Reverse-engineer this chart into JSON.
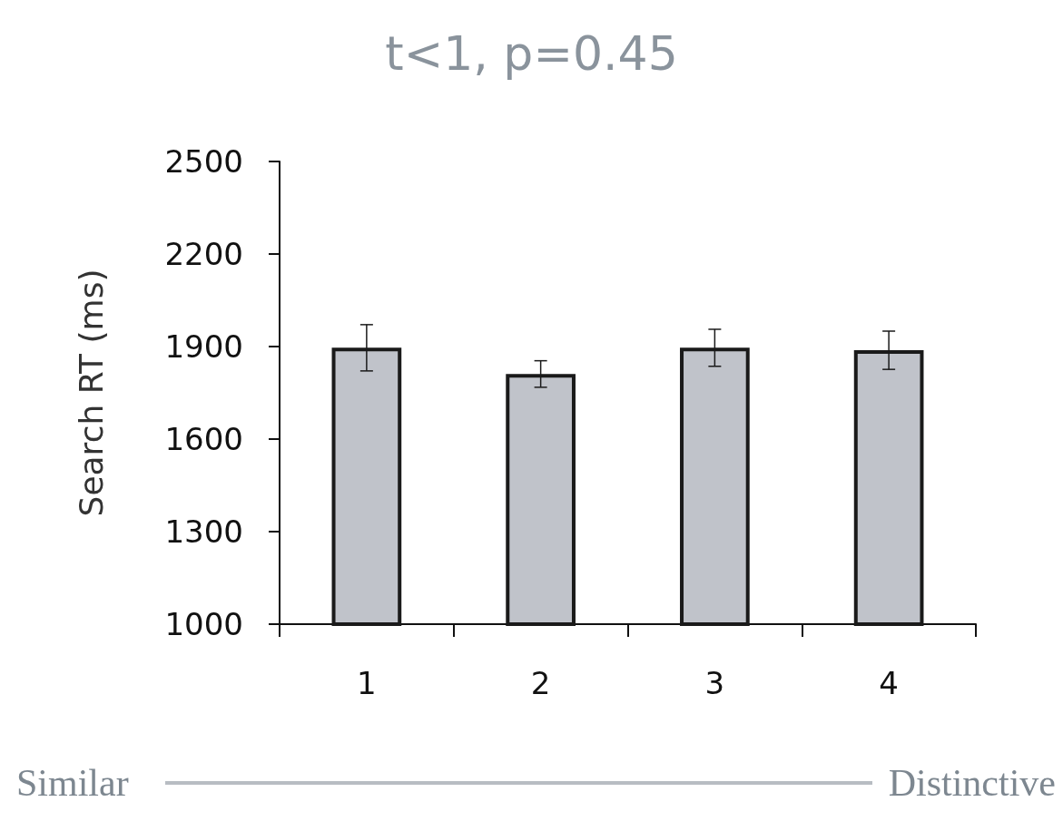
{
  "chart_data": {
    "type": "bar",
    "title": "t<1, p=0.45",
    "ylabel": "Search RT (ms)",
    "categories": [
      "1",
      "2",
      "3",
      "4"
    ],
    "values": [
      1896,
      1811,
      1896,
      1888
    ],
    "errors": [
      75,
      43,
      60,
      62
    ],
    "color": "#c0c3ca",
    "ylim": [
      1000,
      2500
    ],
    "yticks": [
      1000,
      1300,
      1600,
      1900,
      2200,
      2500
    ],
    "grid": false,
    "annotations": [
      "Similar",
      "Distinctive"
    ]
  }
}
